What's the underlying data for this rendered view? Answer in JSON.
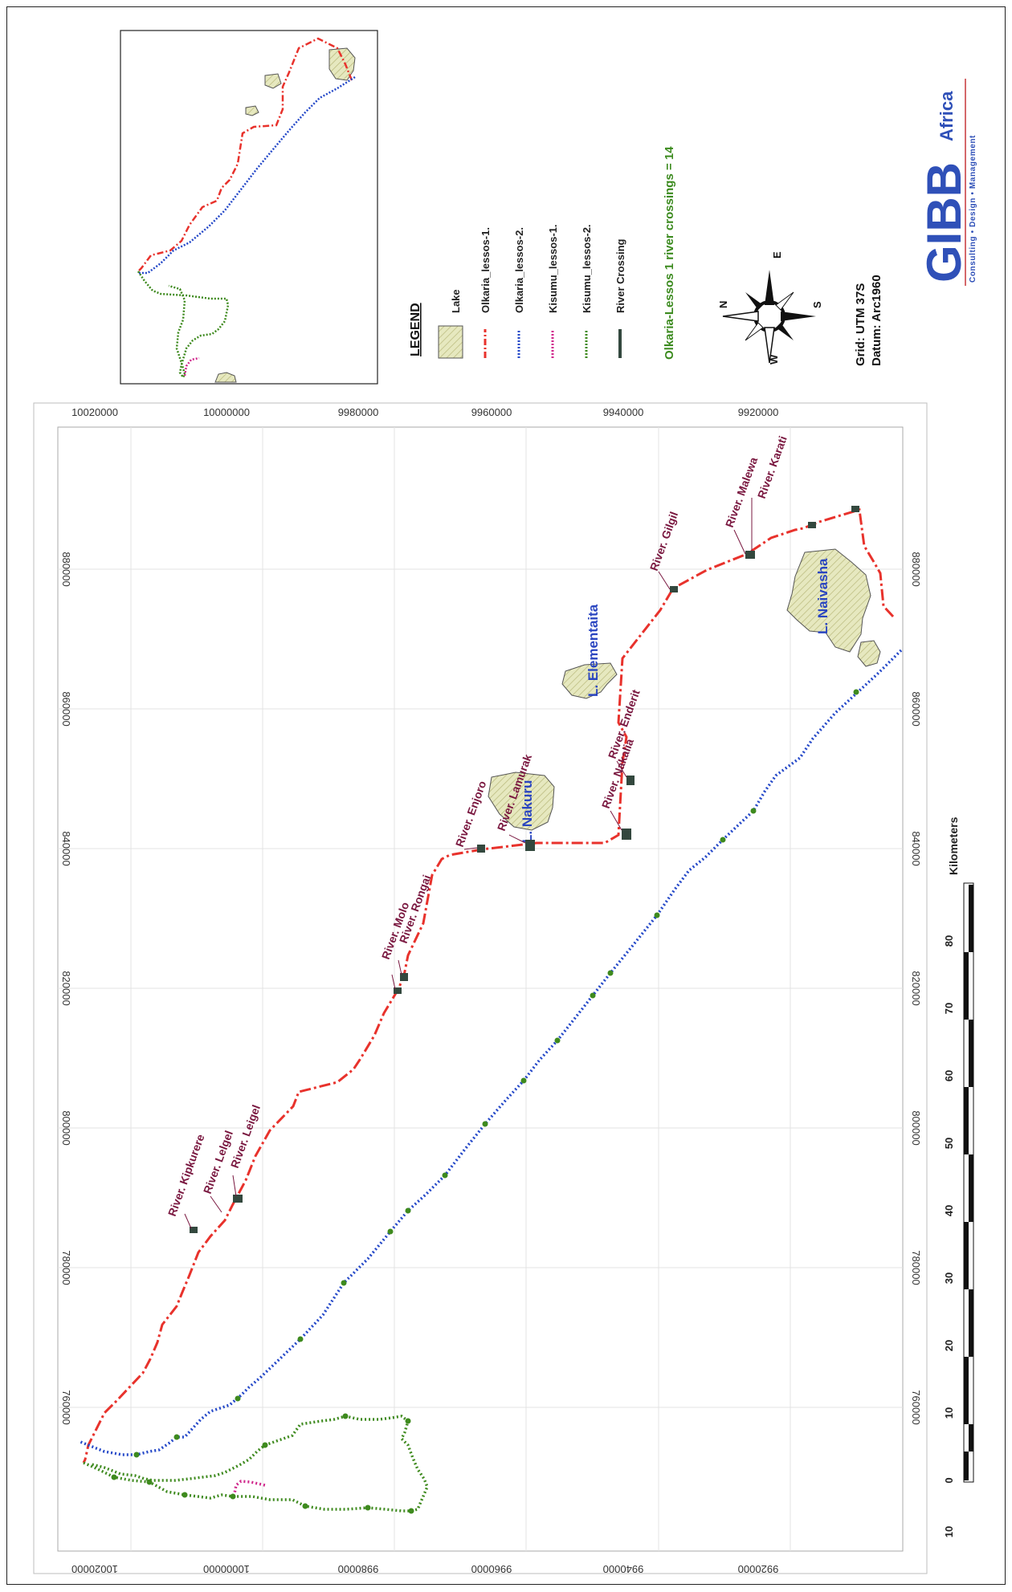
{
  "map": {
    "main_map": {
      "tick_labels": {
        "easting": [
          "760000",
          "780000",
          "800000",
          "820000",
          "840000",
          "860000",
          "880000"
        ],
        "northing": [
          "10020000",
          "10000000",
          "9980000",
          "9960000",
          "9940000",
          "9920000"
        ]
      },
      "lakes": [
        {
          "name": "L. Naivasha"
        },
        {
          "name": "L. Nakuru"
        },
        {
          "name": "L. Elementaita"
        }
      ],
      "river_labels": [
        "River. Kipkurere",
        "River. Lelgel",
        "River. Leigel",
        "River. Molo",
        "River. Rongai",
        "River. Enjoro",
        "River. Lamurak",
        "River. Nakalia",
        "River. Enderit",
        "River. Gilgil",
        "River. Malewa",
        "River. Karati"
      ],
      "scale_bar": {
        "unit": "Kilometers",
        "labels": [
          "10",
          "0",
          "10",
          "20",
          "30",
          "40",
          "50",
          "60",
          "70",
          "80"
        ]
      }
    },
    "legend": {
      "title": "LEGEND",
      "items": [
        {
          "label": "Lake",
          "color": "#e6e8bf",
          "kind": "lake"
        },
        {
          "label": "Olkaria_lessos-1.",
          "color": "#e8322c",
          "kind": "dashdot"
        },
        {
          "label": "Olkaria_lessos-2.",
          "color": "#2448c8",
          "kind": "dotted"
        },
        {
          "label": "Kisumu_lessos-1.",
          "color": "#d0288c",
          "kind": "dotted"
        },
        {
          "label": "Kisumu_lessos-2.",
          "color": "#3e8a1e",
          "kind": "dotted"
        },
        {
          "label": "River Crossing",
          "color": "#33483e",
          "kind": "solid"
        }
      ]
    },
    "info": {
      "summary": "Olkaria-Lessos 1 river crossings = 14",
      "compass": {
        "n": "N",
        "e": "E",
        "s": "S",
        "w": "W"
      },
      "grid": "Grid: UTM 37S",
      "datum": "Datum: Arc1960"
    },
    "logo": {
      "name": "GIBB",
      "tag": "Africa",
      "sub": "Consulting • Design • Management"
    },
    "colors": {
      "olkaria1": "#e8322c",
      "olkaria2": "#2448c8",
      "kisumu1": "#d0288c",
      "kisumu2": "#3e8a1e",
      "crossing": "#33483e",
      "lake_fill": "#e6e8bf",
      "lake_label": "#2a45c0",
      "river_label": "#7a1840",
      "info_text": "#3b8a1e",
      "logo": "#2f50b8"
    }
  }
}
